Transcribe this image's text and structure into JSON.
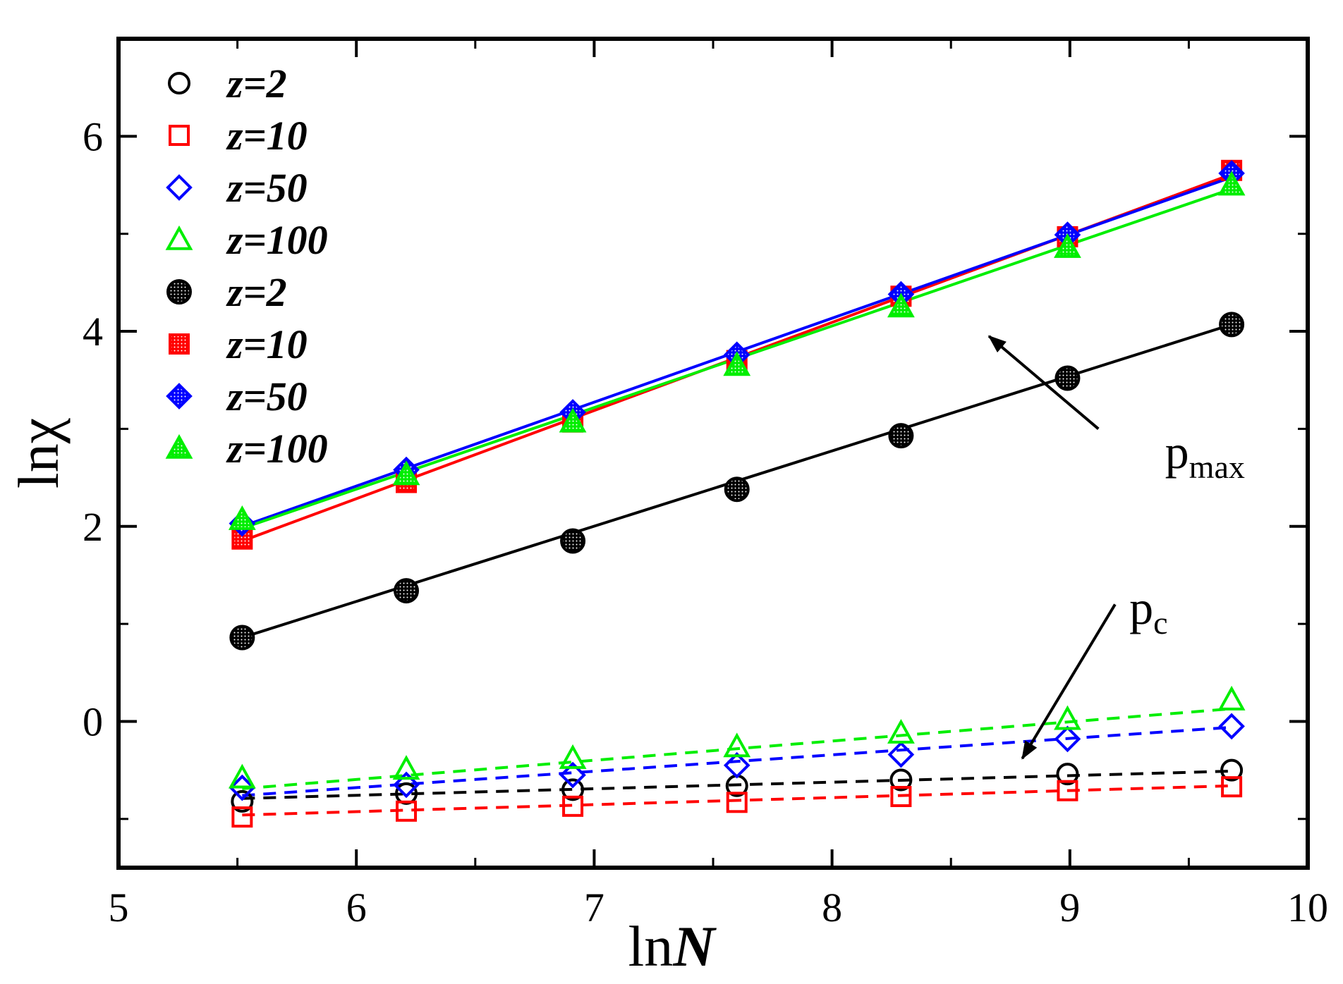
{
  "chart_data": {
    "type": "scatter",
    "xlabel": "lnN",
    "xlabel_parts": {
      "prefix": "ln",
      "var": "N"
    },
    "ylabel": "lnχ",
    "xlim": [
      5,
      10
    ],
    "ylim": [
      -1.5,
      7.0
    ],
    "xticks": [
      5,
      6,
      7,
      8,
      9,
      10
    ],
    "xtick_labels": [
      "5",
      "6",
      "7",
      "8",
      "9",
      "10"
    ],
    "yticks": [
      0,
      2,
      4,
      6
    ],
    "ytick_labels": [
      "0",
      "2",
      "4",
      "6"
    ],
    "x": [
      5.52,
      6.21,
      6.91,
      7.6,
      8.29,
      8.99,
      9.68
    ],
    "legend": [
      {
        "label": "z=2",
        "color": "#000000",
        "marker": "circle",
        "filled": false
      },
      {
        "label": "z=10",
        "color": "#ff0000",
        "marker": "square",
        "filled": false
      },
      {
        "label": "z=50",
        "color": "#0000ff",
        "marker": "diamond",
        "filled": false
      },
      {
        "label": "z=100",
        "color": "#00ee00",
        "marker": "triangle",
        "filled": false
      },
      {
        "label": "z=2",
        "color": "#000000",
        "marker": "circle",
        "filled": true
      },
      {
        "label": "z=10",
        "color": "#ff0000",
        "marker": "square",
        "filled": true
      },
      {
        "label": "z=50",
        "color": "#0000ff",
        "marker": "diamond",
        "filled": true
      },
      {
        "label": "z=100",
        "color": "#00ee00",
        "marker": "triangle",
        "filled": true
      }
    ],
    "series": [
      {
        "name": "z=2 (p_c)",
        "color": "#000000",
        "marker": "circle",
        "filled": false,
        "line": "dashed",
        "values": [
          -0.82,
          -0.74,
          -0.7,
          -0.66,
          -0.6,
          -0.54,
          -0.5
        ],
        "fit": [
          -0.79,
          -0.51
        ]
      },
      {
        "name": "z=10 (p_c)",
        "color": "#ff0000",
        "marker": "square",
        "filled": false,
        "line": "dashed",
        "values": [
          -0.98,
          -0.92,
          -0.87,
          -0.83,
          -0.77,
          -0.71,
          -0.67
        ],
        "fit": [
          -0.96,
          -0.66
        ]
      },
      {
        "name": "z=50 (p_c)",
        "color": "#0000ff",
        "marker": "diamond",
        "filled": false,
        "line": "dashed",
        "values": [
          -0.68,
          -0.65,
          -0.55,
          -0.45,
          -0.34,
          -0.18,
          -0.05
        ],
        "fit": [
          -0.76,
          -0.06
        ]
      },
      {
        "name": "z=100 (p_c)",
        "color": "#00ee00",
        "marker": "triangle",
        "filled": false,
        "line": "dashed",
        "values": [
          -0.58,
          -0.49,
          -0.38,
          -0.26,
          -0.12,
          0.02,
          0.22
        ],
        "fit": [
          -0.69,
          0.13
        ]
      },
      {
        "name": "z=2 (p_max)",
        "color": "#000000",
        "marker": "circle",
        "filled": true,
        "line": "solid",
        "values": [
          0.86,
          1.34,
          1.85,
          2.38,
          2.93,
          3.52,
          4.07
        ],
        "fit": [
          0.86,
          4.07
        ]
      },
      {
        "name": "z=10 (p_max)",
        "color": "#ff0000",
        "marker": "square",
        "filled": true,
        "line": "solid",
        "values": [
          1.87,
          2.45,
          3.07,
          3.7,
          4.36,
          4.97,
          5.65
        ],
        "fit": [
          1.85,
          5.61
        ]
      },
      {
        "name": "z=50 (p_max)",
        "color": "#0000ff",
        "marker": "diamond",
        "filled": true,
        "line": "solid",
        "values": [
          2.03,
          2.58,
          3.17,
          3.76,
          4.38,
          4.99,
          5.62
        ],
        "fit": [
          2.0,
          5.58
        ]
      },
      {
        "name": "z=100 (p_max)",
        "color": "#00ee00",
        "marker": "triangle",
        "filled": true,
        "line": "solid",
        "values": [
          2.07,
          2.53,
          3.07,
          3.65,
          4.25,
          4.86,
          5.5
        ],
        "fit": [
          1.98,
          5.46
        ]
      }
    ],
    "annotations": [
      {
        "name": "pmax",
        "text": "p",
        "sub": "max",
        "anchor": [
          9.4,
          2.6
        ],
        "arrow_from": [
          9.12,
          3.0
        ],
        "arrow_to": [
          8.66,
          3.95
        ]
      },
      {
        "name": "pc",
        "text": "p",
        "sub": "c",
        "anchor": [
          9.25,
          1.0
        ],
        "arrow_from": [
          9.19,
          1.2
        ],
        "arrow_to": [
          8.8,
          -0.38
        ]
      }
    ]
  }
}
